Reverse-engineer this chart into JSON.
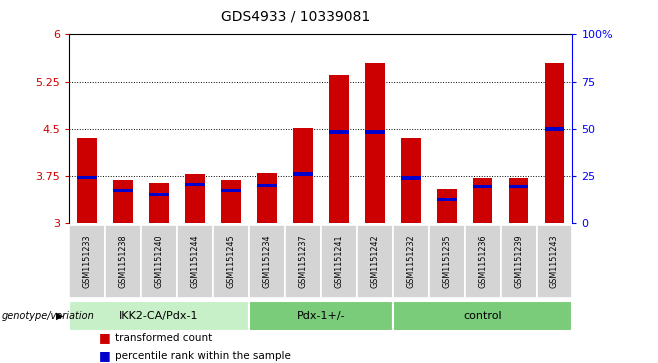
{
  "title": "GDS4933 / 10339081",
  "samples": [
    "GSM1151233",
    "GSM1151238",
    "GSM1151240",
    "GSM1151244",
    "GSM1151245",
    "GSM1151234",
    "GSM1151237",
    "GSM1151241",
    "GSM1151242",
    "GSM1151232",
    "GSM1151235",
    "GSM1151236",
    "GSM1151239",
    "GSM1151243"
  ],
  "red_values": [
    4.35,
    3.68,
    3.64,
    3.78,
    3.68,
    3.8,
    4.52,
    5.35,
    5.55,
    4.35,
    3.55,
    3.72,
    3.72,
    5.55
  ],
  "blue_positions": [
    3.73,
    3.52,
    3.46,
    3.62,
    3.52,
    3.6,
    3.78,
    4.45,
    4.45,
    3.72,
    3.38,
    3.58,
    3.58,
    4.5
  ],
  "groups": [
    {
      "label": "IKK2-CA/Pdx-1",
      "start": 0,
      "end": 5
    },
    {
      "label": "Pdx-1+/-",
      "start": 5,
      "end": 9
    },
    {
      "label": "control",
      "start": 9,
      "end": 14
    }
  ],
  "group_colors": [
    "#c8f0c8",
    "#7acc7a",
    "#7acc7a"
  ],
  "ymin": 3.0,
  "ymax": 6.0,
  "yticks": [
    3.0,
    3.75,
    4.5,
    5.25,
    6.0
  ],
  "ytick_labels": [
    "3",
    "3.75",
    "4.5",
    "5.25",
    "6"
  ],
  "y2ticks": [
    0,
    25,
    50,
    75,
    100
  ],
  "y2tick_labels": [
    "0",
    "25",
    "50",
    "75",
    "100%"
  ],
  "bar_width": 0.55,
  "red_color": "#cc0000",
  "blue_color": "#0000cc",
  "xlabel_left": "genotype/variation",
  "legend_red": "transformed count",
  "legend_blue": "percentile rank within the sample",
  "sample_box_color": "#d4d4d4",
  "gridline_color": [
    3.75,
    4.5,
    5.25
  ]
}
